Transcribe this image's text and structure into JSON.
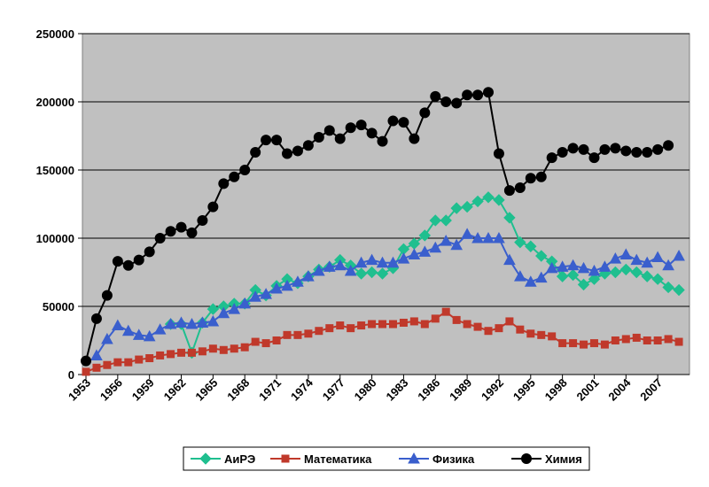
{
  "chart_data": {
    "type": "line",
    "x": [
      1953,
      1954,
      1955,
      1956,
      1957,
      1958,
      1959,
      1960,
      1961,
      1962,
      1963,
      1964,
      1965,
      1966,
      1967,
      1968,
      1969,
      1970,
      1971,
      1972,
      1973,
      1974,
      1975,
      1976,
      1977,
      1978,
      1979,
      1980,
      1981,
      1982,
      1983,
      1984,
      1985,
      1986,
      1987,
      1988,
      1989,
      1990,
      1991,
      1992,
      1993,
      1994,
      1995,
      1996,
      1997,
      1998,
      1999,
      2000,
      2001,
      2002,
      2003,
      2004,
      2005,
      2006,
      2007,
      2008,
      2009
    ],
    "xlim": [
      1953,
      2010
    ],
    "xticks": [
      1953,
      1956,
      1959,
      1962,
      1965,
      1968,
      1971,
      1974,
      1977,
      1980,
      1983,
      1986,
      1989,
      1992,
      1995,
      1998,
      2001,
      2004,
      2007
    ],
    "ylim": [
      0,
      250000
    ],
    "yticks": [
      0,
      50000,
      100000,
      150000,
      200000,
      250000
    ],
    "grid": true,
    "legend": "bottom",
    "series": [
      {
        "name": "АиРЭ",
        "color": "#1fbf8f",
        "marker": "diamond",
        "values": [
          null,
          null,
          null,
          null,
          null,
          null,
          null,
          null,
          37000,
          37000,
          16000,
          38000,
          48000,
          50000,
          52000,
          52000,
          62000,
          58000,
          65000,
          70000,
          67000,
          72000,
          77000,
          79000,
          84000,
          80000,
          74000,
          75000,
          74000,
          78000,
          92000,
          96000,
          102000,
          113000,
          113000,
          122000,
          123000,
          127000,
          130000,
          128000,
          115000,
          97000,
          94000,
          87000,
          83000,
          72000,
          73000,
          66000,
          70000,
          74000,
          75000,
          77000,
          75000,
          72000,
          70000,
          64000,
          62000
        ]
      },
      {
        "name": "Математика",
        "color": "#c0392b",
        "marker": "square",
        "values": [
          2000,
          5000,
          7000,
          9000,
          9000,
          11000,
          12000,
          14000,
          15000,
          16000,
          16000,
          17000,
          19000,
          18000,
          19000,
          20000,
          24000,
          23000,
          25000,
          29000,
          29000,
          30000,
          32000,
          34000,
          36000,
          34000,
          36000,
          37000,
          37000,
          37000,
          38000,
          39000,
          37000,
          41000,
          46000,
          40000,
          37000,
          35000,
          32000,
          34000,
          39000,
          33000,
          30000,
          29000,
          28000,
          23000,
          23000,
          22000,
          23000,
          22000,
          25000,
          26000,
          27000,
          25000,
          25000,
          26000,
          24000
        ]
      },
      {
        "name": "Физика",
        "color": "#3a5fcd",
        "marker": "triangle",
        "values": [
          null,
          14000,
          26000,
          36000,
          32000,
          29000,
          28000,
          33000,
          37000,
          38000,
          37000,
          38000,
          39000,
          45000,
          48000,
          52000,
          57000,
          59000,
          63000,
          65000,
          68000,
          72000,
          76000,
          79000,
          80000,
          76000,
          82000,
          84000,
          82000,
          82000,
          85000,
          88000,
          90000,
          93000,
          98000,
          95000,
          103000,
          100000,
          100000,
          100000,
          84000,
          72000,
          68000,
          71000,
          78000,
          79000,
          80000,
          78000,
          76000,
          79000,
          85000,
          88000,
          84000,
          82000,
          86000,
          80000,
          87000
        ]
      },
      {
        "name": "Химия",
        "color": "#000000",
        "marker": "circle",
        "values": [
          10000,
          41000,
          58000,
          83000,
          80000,
          84000,
          90000,
          100000,
          105000,
          108000,
          104000,
          113000,
          123000,
          140000,
          145000,
          150000,
          163000,
          172000,
          172000,
          162000,
          164000,
          168000,
          174000,
          179000,
          173000,
          181000,
          183000,
          177000,
          171000,
          186000,
          185000,
          173000,
          192000,
          204000,
          200000,
          199000,
          205000,
          205000,
          207000,
          162000,
          135000,
          137000,
          144000,
          145000,
          159000,
          163000,
          166000,
          165000,
          159000,
          165000,
          166000,
          164000,
          163000,
          163000,
          165000,
          168000,
          null
        ]
      }
    ]
  }
}
